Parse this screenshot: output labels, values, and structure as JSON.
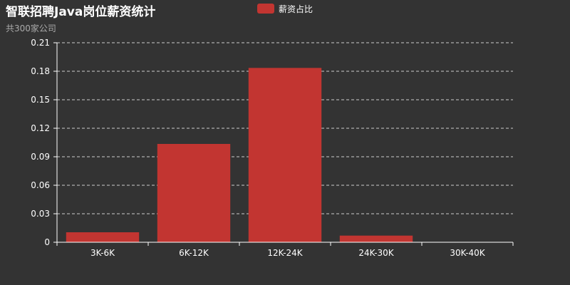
{
  "theme": {
    "background": "#333333",
    "bar": "#c23531",
    "text": "#ffffff",
    "subtext": "#aaaaaa",
    "axis": "#ffffff",
    "grid": "#cccccc"
  },
  "chart_data": {
    "type": "bar",
    "title": "智联招聘Java岗位薪资统计",
    "subtitle": "共300家公司",
    "legend": "top-center",
    "grid": true,
    "categories": [
      "3K-6K",
      "6K-12K",
      "12K-24K",
      "24K-30K",
      "30K-40K"
    ],
    "series": [
      {
        "name": "薪资占比",
        "values": [
          0.0105,
          0.1035,
          0.1835,
          0.007,
          0.0
        ]
      }
    ],
    "ylim": [
      0,
      0.21
    ],
    "yticks": [
      "0",
      "0.03",
      "0.06",
      "0.09",
      "0.12",
      "0.15",
      "0.18",
      "0.21"
    ]
  }
}
